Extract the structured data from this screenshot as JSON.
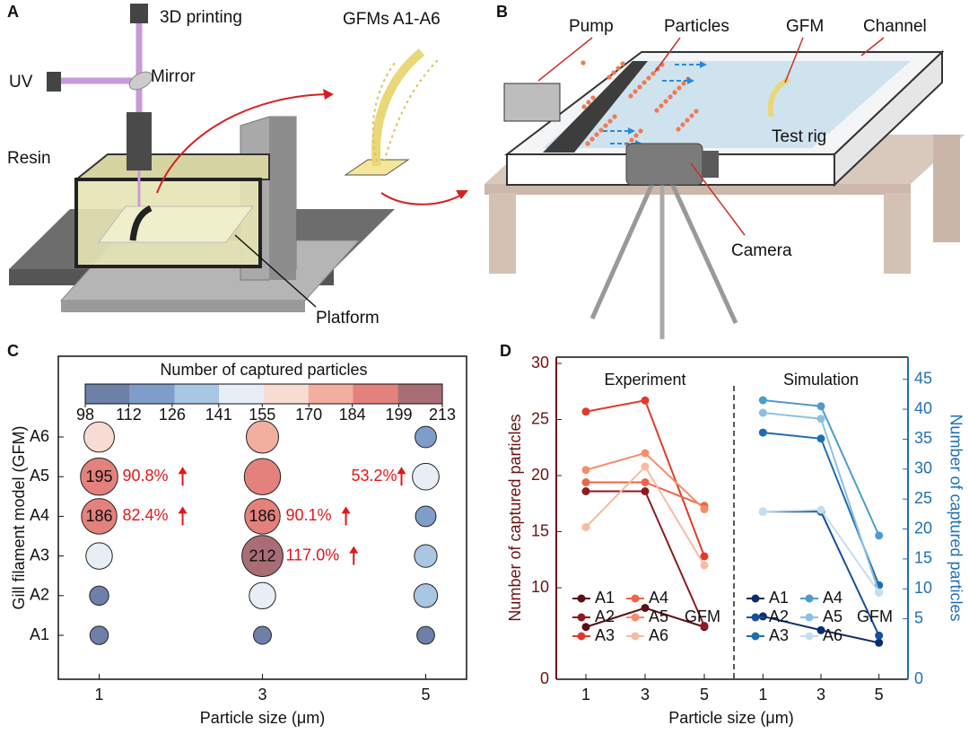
{
  "panels": {
    "a": {
      "label": "A",
      "texts": [
        "3D printing",
        "GFMs A1-A6",
        "UV",
        "Mirror",
        "Resin",
        "Platform"
      ]
    },
    "b": {
      "label": "B",
      "texts": [
        "Pump",
        "Particles",
        "GFM",
        "Channel",
        "Test rig",
        "Camera"
      ]
    }
  },
  "chart_data": [
    {
      "type": "bubble",
      "panel_label": "C",
      "colorbar_title": "Number of captured particles",
      "colorbar_ticks": [
        98,
        112,
        126,
        141,
        155,
        170,
        184,
        199,
        213
      ],
      "colorbar_colors": [
        "#6f80a8",
        "#7f9dc9",
        "#a9c6e3",
        "#e8eef6",
        "#f8dbd2",
        "#f2ae9f",
        "#e3817c",
        "#a96d76"
      ],
      "xlabel": "Particle size (μm)",
      "ylabel": "Gill filament model (GFM)",
      "x": [
        1,
        3,
        5
      ],
      "xlim": [
        0.5,
        5.5
      ],
      "xticks": [
        1,
        3,
        5
      ],
      "categories": [
        "A1",
        "A2",
        "A3",
        "A4",
        "A5",
        "A6"
      ],
      "values": [
        [
          108,
          112,
          145,
          186,
          195,
          163
        ],
        [
          106,
          145,
          212,
          186,
          190,
          172
        ],
        [
          105,
          132,
          128,
          118,
          146,
          122
        ]
      ],
      "value_labels": [
        [
          null,
          null,
          null,
          "186",
          "195",
          null
        ],
        [
          null,
          null,
          "212",
          "186",
          null,
          null
        ],
        [
          null,
          null,
          null,
          null,
          null,
          null
        ]
      ],
      "annotation_color": "#e3161b",
      "annotations": [
        {
          "x": 1,
          "category": "A5",
          "text": "90.8%"
        },
        {
          "x": 1,
          "category": "A4",
          "text": "82.4%"
        },
        {
          "x": 3,
          "category": "A4",
          "text": "90.1%"
        },
        {
          "x": 3,
          "category": "A3",
          "text": "117.0%"
        },
        {
          "x": 5,
          "category": "A5",
          "text": "53.2%",
          "align": "left"
        }
      ]
    },
    {
      "type": "line",
      "panel_label": "D",
      "title": "Experiment",
      "xlabel": "Particle size (μm)",
      "ylabel": "Number of captured particles",
      "axis_color": "#6b1214",
      "x": [
        1,
        3,
        5
      ],
      "xlim": [
        0,
        6
      ],
      "xticks": [
        1,
        3,
        5
      ],
      "ylim": [
        1.84,
        30.56
      ],
      "yticks": [
        10,
        15,
        20,
        25,
        30
      ],
      "y_bottom_label": "0",
      "legend_title": "GFM",
      "series": [
        {
          "name": "A1",
          "color": "#5a0f14",
          "values": [
            6.5,
            8.2,
            6.5
          ]
        },
        {
          "name": "A2",
          "color": "#8e1b1f",
          "values": [
            18.6,
            18.6,
            6.6
          ]
        },
        {
          "name": "A3",
          "color": "#e2392c",
          "values": [
            25.7,
            26.7,
            12.8
          ]
        },
        {
          "name": "A4",
          "color": "#ef6446",
          "values": [
            19.4,
            19.4,
            17.3
          ]
        },
        {
          "name": "A5",
          "color": "#f58d6c",
          "values": [
            20.5,
            22.0,
            17.0
          ]
        },
        {
          "name": "A6",
          "color": "#f8bb9f",
          "values": [
            15.4,
            20.8,
            12.0
          ]
        }
      ]
    },
    {
      "type": "line",
      "title": "Simulation",
      "y2label": "Number of captured particles",
      "axis_color": "#1f6fb5",
      "x": [
        1,
        3,
        5
      ],
      "xlim": [
        0,
        6
      ],
      "xticks": [
        1,
        3,
        5
      ],
      "y2lim": [
        -5.1,
        48.7
      ],
      "y2ticks": [
        5,
        10,
        15,
        20,
        25,
        30,
        35,
        40,
        45
      ],
      "y2_bottom_label": "0",
      "legend_title": "GFM",
      "series": [
        {
          "name": "A1",
          "color": "#0c2d6b",
          "axis": "y2",
          "values": [
            5.4,
            3.1,
            1.0
          ]
        },
        {
          "name": "A2",
          "color": "#14509d",
          "axis": "y2",
          "values": [
            22.9,
            22.9,
            2.2
          ]
        },
        {
          "name": "A3",
          "color": "#1e6db3",
          "axis": "y2",
          "values": [
            36.1,
            35.1,
            10.6
          ]
        },
        {
          "name": "A4",
          "color": "#4e9bcc",
          "axis": "y2",
          "values": [
            41.5,
            40.5,
            18.9
          ]
        },
        {
          "name": "A5",
          "color": "#8ebfe0",
          "axis": "y2",
          "values": [
            39.4,
            38.4,
            9.4
          ]
        },
        {
          "name": "A6",
          "color": "#c6ddef",
          "axis": "y2",
          "values": [
            22.9,
            23.2,
            9.4
          ]
        }
      ]
    }
  ]
}
